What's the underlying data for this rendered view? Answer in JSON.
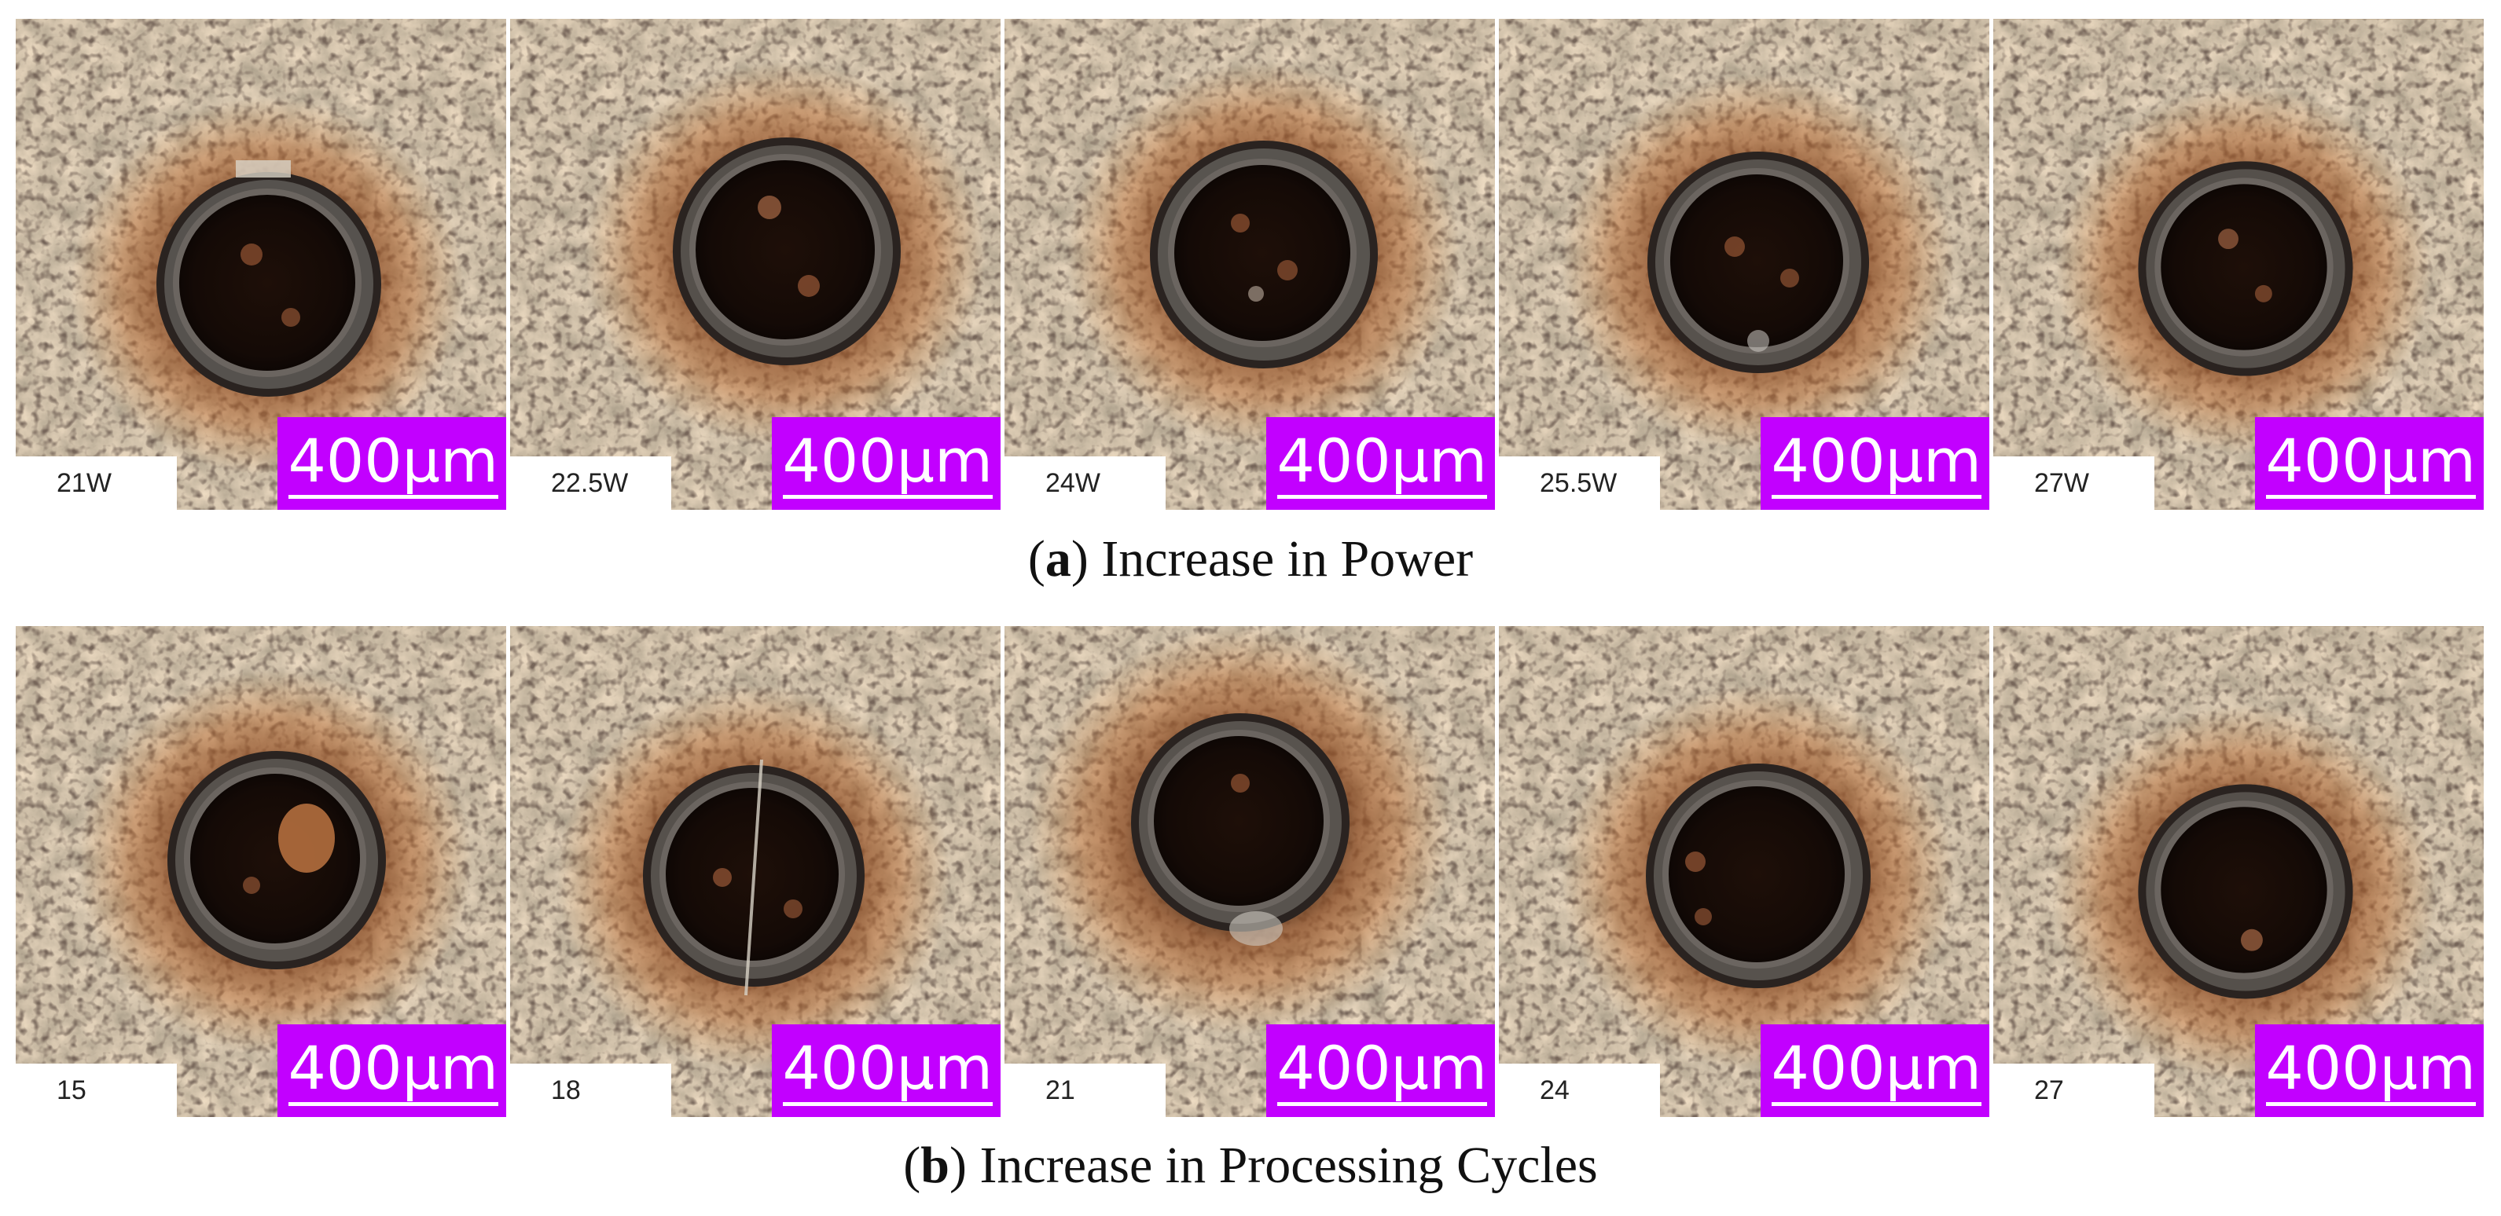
{
  "figure": {
    "row_a": {
      "panels": [
        {
          "label": "21W",
          "scale": "400μm"
        },
        {
          "label": "22.5W",
          "scale": "400μm"
        },
        {
          "label": "24W",
          "scale": "400μm"
        },
        {
          "label": "25.5W",
          "scale": "400μm"
        },
        {
          "label": "27W",
          "scale": "400μm"
        }
      ],
      "caption": {
        "open": "(",
        "letter": "a",
        "text": ") Increase in Power"
      }
    },
    "row_b": {
      "panels": [
        {
          "label": "15",
          "scale": "400μm"
        },
        {
          "label": "18",
          "scale": "400μm"
        },
        {
          "label": "21",
          "scale": "400μm"
        },
        {
          "label": "24",
          "scale": "400μm"
        },
        {
          "label": "27",
          "scale": "400μm"
        }
      ],
      "caption": {
        "open": "(",
        "letter": "b",
        "text": ") Increase in Processing Cycles"
      }
    }
  },
  "colors": {
    "scale_bar": "#c200ff",
    "surface": "#b9a58a",
    "rust": "#b5642a",
    "hole": "#140a06"
  }
}
